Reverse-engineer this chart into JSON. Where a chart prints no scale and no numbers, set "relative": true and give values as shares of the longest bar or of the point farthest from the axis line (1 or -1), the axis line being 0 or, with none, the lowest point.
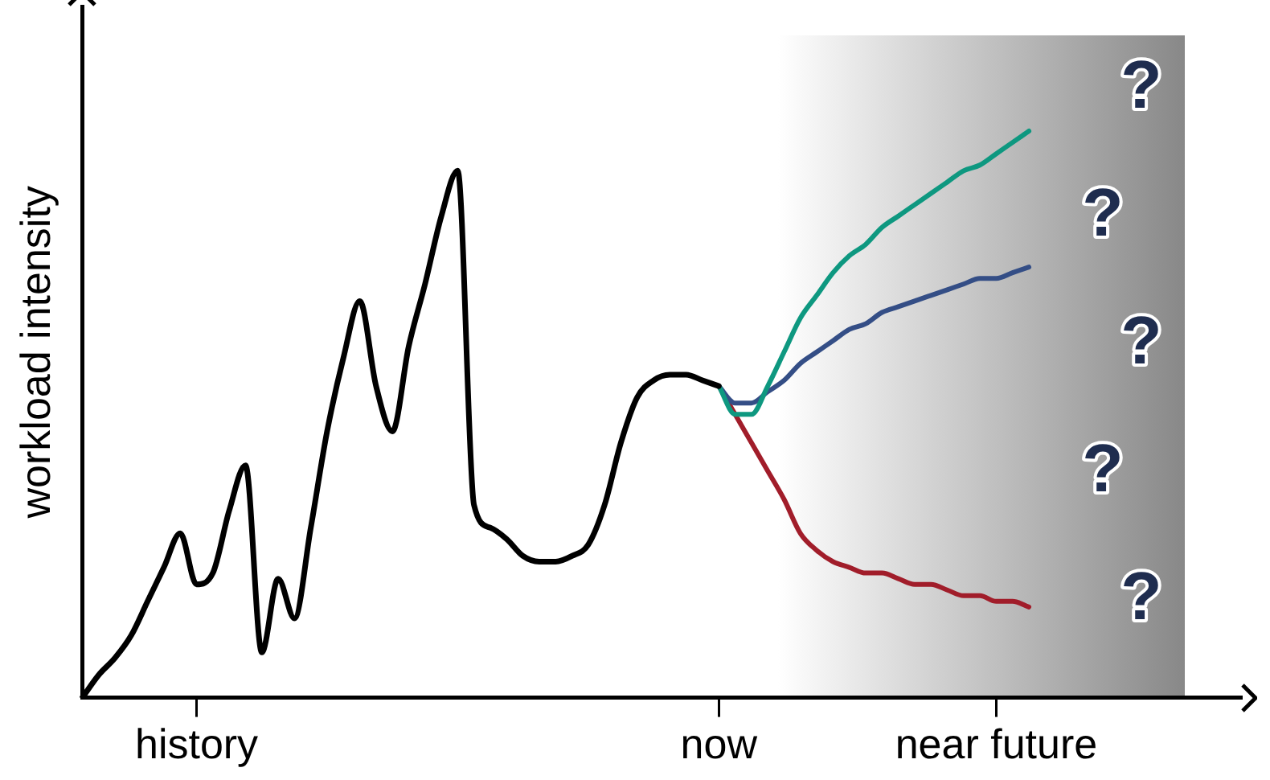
{
  "chart_data": {
    "type": "line",
    "relative": true,
    "ylabel": "workload intensity",
    "categories": [
      null,
      null,
      null,
      null,
      null,
      null,
      null,
      "history",
      null,
      null,
      null,
      null,
      null,
      null,
      null,
      null,
      null,
      null,
      null,
      null,
      null,
      null,
      null,
      null,
      null,
      null,
      null,
      null,
      null,
      null,
      null,
      null,
      null,
      null,
      null,
      null,
      null,
      null,
      null,
      "now",
      null,
      null,
      null,
      null,
      null,
      null,
      null,
      null,
      null,
      null,
      null,
      null,
      null,
      null,
      null,
      null,
      "near future",
      null,
      null,
      null,
      null,
      null,
      null,
      null,
      null,
      null,
      null,
      null,
      null,
      null,
      null,
      null
    ],
    "series": [
      {
        "color": "#000000",
        "values": [
          0,
          0.04,
          0.07,
          0.11,
          0.17,
          0.23,
          0.29,
          0.2,
          0.22,
          0.33,
          0.41,
          0.08,
          0.21,
          0.14,
          0.3,
          0.47,
          0.6,
          0.7,
          0.55,
          0.47,
          0.62,
          0.73,
          0.85,
          0.93,
          0.34,
          0.3,
          0.28,
          0.25,
          0.24,
          0.24,
          0.25,
          0.27,
          0.34,
          0.45,
          0.53,
          0.56,
          0.57,
          0.57,
          0.56,
          0.55,
          null,
          null,
          null,
          null,
          null,
          null,
          null,
          null,
          null,
          null,
          null,
          null,
          null,
          null,
          null,
          null,
          null,
          null,
          null,
          null,
          null,
          null,
          null,
          null,
          null,
          null,
          null,
          null,
          null,
          null,
          null,
          null
        ]
      },
      {
        "color": "#0e9880",
        "values": [
          null,
          null,
          null,
          null,
          null,
          null,
          null,
          null,
          null,
          null,
          null,
          null,
          null,
          null,
          null,
          null,
          null,
          null,
          null,
          null,
          null,
          null,
          null,
          null,
          null,
          null,
          null,
          null,
          null,
          null,
          null,
          null,
          null,
          null,
          null,
          null,
          null,
          null,
          null,
          0.55,
          0.5,
          0.5,
          0.55,
          0.61,
          0.67,
          0.71,
          0.75,
          0.78,
          0.8,
          0.83,
          0.85,
          0.87,
          0.89,
          0.91,
          0.93,
          0.94,
          0.96,
          0.98,
          1,
          null,
          null,
          null,
          null,
          null,
          null,
          null,
          null,
          null,
          null,
          null,
          null,
          null
        ]
      },
      {
        "color": "#344e86",
        "values": [
          null,
          null,
          null,
          null,
          null,
          null,
          null,
          null,
          null,
          null,
          null,
          null,
          null,
          null,
          null,
          null,
          null,
          null,
          null,
          null,
          null,
          null,
          null,
          null,
          null,
          null,
          null,
          null,
          null,
          null,
          null,
          null,
          null,
          null,
          null,
          null,
          null,
          null,
          null,
          0.55,
          0.52,
          0.52,
          0.54,
          0.56,
          0.59,
          0.61,
          0.63,
          0.65,
          0.66,
          0.68,
          0.69,
          0.7,
          0.71,
          0.72,
          0.73,
          0.74,
          0.74,
          0.75,
          0.76,
          null,
          null,
          null,
          null,
          null,
          null,
          null,
          null,
          null,
          null,
          null,
          null,
          null
        ]
      },
      {
        "color": "#a11d2a",
        "values": [
          null,
          null,
          null,
          null,
          null,
          null,
          null,
          null,
          null,
          null,
          null,
          null,
          null,
          null,
          null,
          null,
          null,
          null,
          null,
          null,
          null,
          null,
          null,
          null,
          null,
          null,
          null,
          null,
          null,
          null,
          null,
          null,
          null,
          null,
          null,
          null,
          null,
          null,
          null,
          0.55,
          0.5,
          0.45,
          0.4,
          0.35,
          0.29,
          0.26,
          0.24,
          0.23,
          0.22,
          0.22,
          0.21,
          0.2,
          0.2,
          0.19,
          0.18,
          0.18,
          0.17,
          0.17,
          0.16,
          null,
          null,
          null,
          null,
          null,
          null,
          null,
          null,
          null,
          null,
          null,
          null,
          null
        ]
      }
    ],
    "annotations": [
      "?",
      "?",
      "?",
      "?",
      "?"
    ]
  }
}
